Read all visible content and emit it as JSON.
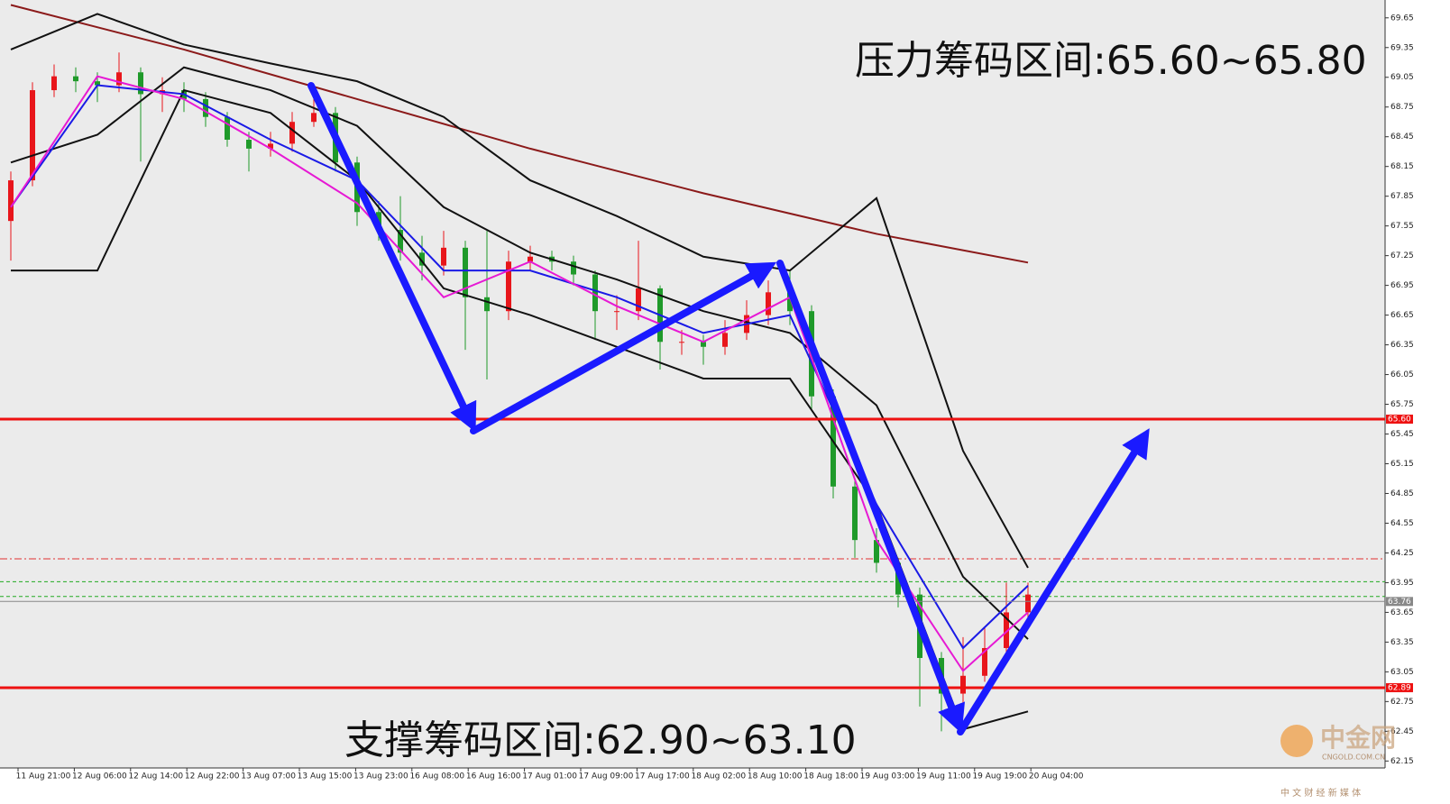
{
  "chart_data": {
    "type": "candlestick",
    "annotations": [
      "压力筹码区间:65.60~65.80",
      "支撑筹码区间:62.90~63.10"
    ],
    "watermark": [
      "中金网",
      "CNGOLD.COM.CN",
      "中 文 财 经 新 媒 体"
    ],
    "x_labels": [
      "11 Aug 21:00",
      "12 Aug 06:00",
      "12 Aug 14:00",
      "12 Aug 22:00",
      "13 Aug 07:00",
      "13 Aug 15:00",
      "13 Aug 23:00",
      "16 Aug 08:00",
      "16 Aug 16:00",
      "17 Aug 01:00",
      "17 Aug 09:00",
      "17 Aug 17:00",
      "18 Aug 02:00",
      "18 Aug 10:00",
      "18 Aug 18:00",
      "19 Aug 03:00",
      "19 Aug 11:00",
      "19 Aug 19:00",
      "20 Aug 04:00"
    ],
    "ylim": [
      62.08,
      69.83
    ],
    "yticks": [
      69.65,
      69.35,
      69.05,
      68.75,
      68.45,
      68.15,
      67.85,
      67.55,
      67.25,
      66.95,
      66.65,
      66.35,
      66.05,
      65.75,
      65.45,
      65.15,
      64.85,
      64.55,
      64.25,
      63.95,
      63.65,
      63.35,
      63.05,
      62.75,
      62.45,
      62.15
    ],
    "candles": {
      "open": [
        67.6,
        68.01,
        68.92,
        69.06,
        69.01,
        68.97,
        69.1,
        68.88,
        68.92,
        68.83,
        68.65,
        68.42,
        68.33,
        68.38,
        68.6,
        68.69,
        68.19,
        67.69,
        67.51,
        67.28,
        67.15,
        67.33,
        66.83,
        66.69,
        67.19,
        67.24,
        67.19,
        67.06,
        66.69,
        66.69,
        66.92,
        66.38,
        66.38,
        66.33,
        66.47,
        66.65,
        66.88,
        66.69,
        65.83,
        64.92,
        64.38,
        64.15,
        63.83,
        63.19,
        62.83,
        63.01,
        63.29,
        63.65
      ],
      "high": [
        68.1,
        69.0,
        69.18,
        69.15,
        69.1,
        69.3,
        69.15,
        69.05,
        69.0,
        68.9,
        68.7,
        68.5,
        68.5,
        68.7,
        68.9,
        68.75,
        68.25,
        67.8,
        67.85,
        67.45,
        67.5,
        67.4,
        67.5,
        67.3,
        67.35,
        67.3,
        67.25,
        67.1,
        66.85,
        67.4,
        66.95,
        66.5,
        66.45,
        66.6,
        66.8,
        67.0,
        67.1,
        66.75,
        65.9,
        65.0,
        64.5,
        64.2,
        63.9,
        63.25,
        63.4,
        63.5,
        63.95,
        63.95
      ],
      "low": [
        67.2,
        67.95,
        68.85,
        68.9,
        68.8,
        68.9,
        68.2,
        68.7,
        68.7,
        68.55,
        68.35,
        68.1,
        68.25,
        68.3,
        68.55,
        68.1,
        67.55,
        67.4,
        67.2,
        67.0,
        67.05,
        66.3,
        66.0,
        66.6,
        67.1,
        67.1,
        66.95,
        66.4,
        66.5,
        66.6,
        66.1,
        66.25,
        66.15,
        66.25,
        66.4,
        66.55,
        66.55,
        65.7,
        64.8,
        64.2,
        64.05,
        63.7,
        62.7,
        62.45,
        62.7,
        62.95,
        63.2,
        63.6
      ],
      "close": [
        68.01,
        68.92,
        69.06,
        69.01,
        68.97,
        69.1,
        68.88,
        68.92,
        68.83,
        68.65,
        68.42,
        68.33,
        68.38,
        68.6,
        68.69,
        68.19,
        67.69,
        67.51,
        67.28,
        67.15,
        67.33,
        66.83,
        66.69,
        67.19,
        67.24,
        67.19,
        67.06,
        66.69,
        66.69,
        66.92,
        66.38,
        66.38,
        66.33,
        66.47,
        66.65,
        66.88,
        66.69,
        65.83,
        64.92,
        64.38,
        64.15,
        63.83,
        63.19,
        62.83,
        63.01,
        63.29,
        63.65,
        63.83
      ],
      "up_color": "#e8161b",
      "down_color": "#1f9a2a"
    },
    "lines": [
      {
        "color": "#8b1a1a",
        "x": [
          0,
          8,
          16,
          24,
          32,
          40,
          47
        ],
        "values": [
          69.78,
          69.33,
          68.83,
          68.33,
          67.88,
          67.47,
          67.18
        ]
      },
      {
        "color": "#111111",
        "x": [
          0,
          4,
          8,
          12,
          16,
          20,
          24,
          28,
          32,
          36,
          40,
          44,
          47
        ],
        "values": [
          69.33,
          69.69,
          69.38,
          69.19,
          69.01,
          68.65,
          68.01,
          67.65,
          67.24,
          67.1,
          67.83,
          65.28,
          64.1
        ]
      },
      {
        "color": "#111111",
        "x": [
          0,
          4,
          8,
          12,
          16,
          20,
          24,
          28,
          32,
          36,
          40,
          44,
          47
        ],
        "values": [
          68.19,
          68.47,
          69.15,
          68.92,
          68.56,
          67.74,
          67.28,
          67.01,
          66.69,
          66.47,
          65.74,
          64.01,
          63.38
        ]
      },
      {
        "color": "#111111",
        "x": [
          0,
          4,
          8,
          12,
          16,
          20,
          24,
          28,
          32,
          36,
          40,
          44,
          47
        ],
        "values": [
          67.1,
          67.1,
          68.92,
          68.69,
          68.01,
          66.92,
          66.65,
          66.33,
          66.01,
          66.01,
          64.74,
          62.47,
          62.65
        ]
      },
      {
        "color": "#1a1ae6",
        "x": [
          0,
          4,
          8,
          12,
          16,
          20,
          24,
          28,
          32,
          36,
          40,
          44,
          47
        ],
        "values": [
          67.74,
          68.97,
          68.88,
          68.42,
          68.01,
          67.1,
          67.1,
          66.83,
          66.47,
          66.65,
          64.74,
          63.29,
          63.92
        ]
      },
      {
        "color": "#e619d4",
        "x": [
          0,
          4,
          8,
          12,
          16,
          20,
          24,
          28,
          32,
          36,
          40,
          44,
          47
        ],
        "values": [
          67.74,
          69.06,
          68.83,
          68.33,
          67.78,
          66.83,
          67.19,
          66.74,
          66.38,
          66.83,
          64.38,
          63.06,
          63.65
        ]
      }
    ],
    "levels": [
      {
        "value": 65.6,
        "label": "65.60",
        "color": "#ee1111"
      },
      {
        "value": 62.89,
        "label": "62.89",
        "color": "#ee1111"
      },
      {
        "value": 63.76,
        "label": "63.76",
        "color": "#888888"
      }
    ],
    "guides": [
      {
        "value": 64.19,
        "color": "#e03030"
      },
      {
        "value": 63.96,
        "color": "#22aa22"
      },
      {
        "value": 63.81,
        "color": "#22aa22"
      }
    ]
  }
}
